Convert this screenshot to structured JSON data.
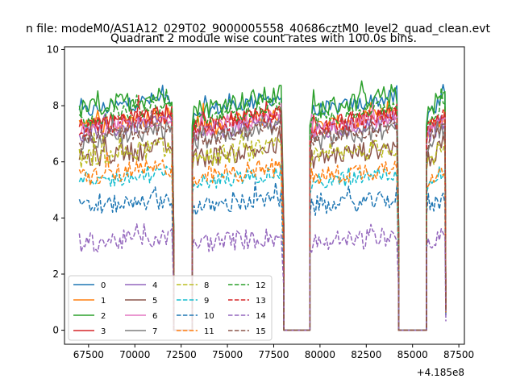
{
  "chart_data": {
    "type": "line",
    "suptitle": "n file: modeM0/AS1A12_029T02_9000005558_40686cztM0_level2_quad_clean.evt",
    "title": "Quadrant 2 module wise count rates with 100.0s bins.",
    "xlabel": "",
    "ylabel": "",
    "x_offset_label": "+4.185e8",
    "xlim": [
      66200,
      87800
    ],
    "ylim": [
      -0.5,
      10.1
    ],
    "xticks": [
      67500,
      70000,
      72500,
      75000,
      77500,
      80000,
      82500,
      85000,
      87500
    ],
    "yticks": [
      0,
      2,
      4,
      6,
      8,
      10
    ],
    "gaps": [
      [
        72100,
        73100
      ],
      [
        78050,
        79450
      ],
      [
        84250,
        85750
      ]
    ],
    "segments": [
      [
        67000,
        72000
      ],
      [
        73200,
        77950
      ],
      [
        79550,
        84150
      ],
      [
        85850,
        86800
      ]
    ],
    "grid": false,
    "legend": {
      "position": "lower left",
      "columns": 4,
      "entries": [
        "0",
        "1",
        "2",
        "3",
        "4",
        "5",
        "6",
        "7",
        "8",
        "9",
        "10",
        "11",
        "12",
        "13",
        "14",
        "15"
      ]
    },
    "series": [
      {
        "name": "0",
        "style": "solid",
        "color": "#1f77b4",
        "level": 8.0
      },
      {
        "name": "1",
        "style": "solid",
        "color": "#ff7f0e",
        "level": 7.4
      },
      {
        "name": "2",
        "style": "solid",
        "color": "#2ca02c",
        "level": 8.1
      },
      {
        "name": "3",
        "style": "solid",
        "color": "#d62728",
        "level": 7.5
      },
      {
        "name": "4",
        "style": "solid",
        "color": "#9467bd",
        "level": 7.2
      },
      {
        "name": "5",
        "style": "solid",
        "color": "#8c564b",
        "level": 6.3
      },
      {
        "name": "6",
        "style": "solid",
        "color": "#e377c2",
        "level": 7.3
      },
      {
        "name": "7",
        "style": "solid",
        "color": "#7f7f7f",
        "level": 6.9
      },
      {
        "name": "8",
        "style": "dashed",
        "color": "#bcbd22",
        "level": 6.3
      },
      {
        "name": "9",
        "style": "dashed",
        "color": "#17becf",
        "level": 5.4
      },
      {
        "name": "10",
        "style": "dashed",
        "color": "#1f77b4",
        "level": 4.5
      },
      {
        "name": "11",
        "style": "dashed",
        "color": "#ff7f0e",
        "level": 5.6
      },
      {
        "name": "12",
        "style": "dashed",
        "color": "#2ca02c",
        "level": 7.7
      },
      {
        "name": "13",
        "style": "dashed",
        "color": "#d62728",
        "level": 7.4
      },
      {
        "name": "14",
        "style": "dashed",
        "color": "#9467bd",
        "level": 3.2
      },
      {
        "name": "15",
        "style": "dashed",
        "color": "#8c564b",
        "level": 7.0
      }
    ]
  }
}
